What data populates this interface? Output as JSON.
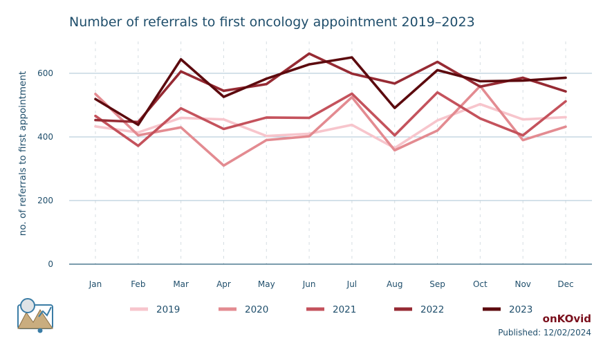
{
  "chart_data": {
    "type": "line",
    "title": "Number of referrals to first oncology appointment 2019–2023",
    "xlabel": "",
    "ylabel": "no. of referrals to first appointment",
    "categories": [
      "Jan",
      "Feb",
      "Mar",
      "Apr",
      "May",
      "Jun",
      "Jul",
      "Aug",
      "Sep",
      "Oct",
      "Nov",
      "Dec"
    ],
    "ylim": [
      0,
      700
    ],
    "yticks": [
      0,
      200,
      400,
      600
    ],
    "grid": "horizontal",
    "legend_position": "bottom",
    "series": [
      {
        "name": "2019",
        "color": "#f7c5cc",
        "values": [
          433,
          414,
          460,
          455,
          403,
          410,
          438,
          365,
          452,
          503,
          455,
          462
        ]
      },
      {
        "name": "2020",
        "color": "#e38b91",
        "values": [
          535,
          405,
          430,
          310,
          390,
          402,
          525,
          358,
          420,
          560,
          390,
          432
        ]
      },
      {
        "name": "2021",
        "color": "#c4525c",
        "values": [
          466,
          372,
          490,
          425,
          461,
          460,
          536,
          405,
          540,
          458,
          405,
          512
        ]
      },
      {
        "name": "2022",
        "color": "#962a33",
        "values": [
          453,
          447,
          606,
          545,
          566,
          662,
          599,
          568,
          636,
          558,
          586,
          543
        ]
      },
      {
        "name": "2023",
        "color": "#5c0a0e",
        "values": [
          519,
          438,
          644,
          526,
          583,
          628,
          650,
          491,
          610,
          575,
          577,
          586
        ]
      }
    ]
  },
  "branding": {
    "name": "onKOvid",
    "published": "Published: 12/02/2024",
    "logo_icon": "mountain-chart-logo-icon"
  }
}
